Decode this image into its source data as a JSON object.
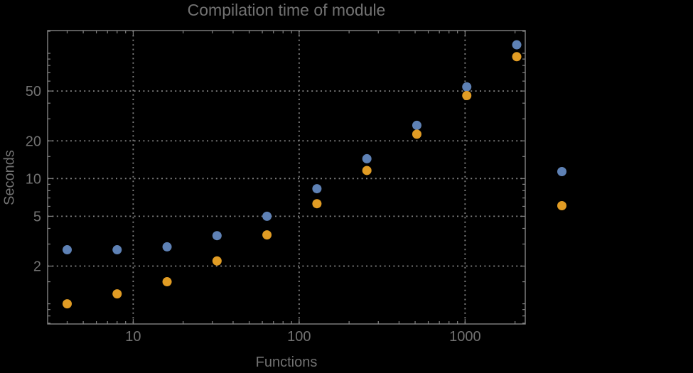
{
  "colors": {
    "background": "#000000",
    "text": "#727272",
    "frame": "#838383",
    "grid": "#848484",
    "series_blue": "#5E81B5",
    "series_orange": "#E19C24"
  },
  "chart_data": {
    "type": "scatter",
    "title": "Compilation time of module",
    "xlabel": "Functions",
    "ylabel": "Seconds",
    "x_scale": "log",
    "y_scale": "log",
    "xlim": [
      3.05,
      2305
    ],
    "ylim": [
      0.69,
      152
    ],
    "grid": "dotted, at labeled ticks only",
    "legend_position": "right-outside, markers only (no visible label text)",
    "x": [
      4,
      8,
      16,
      32,
      64,
      128,
      256,
      512,
      1024,
      2048
    ],
    "series": [
      {
        "name": "series-1-blue",
        "color": "#5E81B5",
        "values": [
          2.7,
          2.7,
          2.85,
          3.5,
          5.0,
          8.3,
          14.4,
          26.6,
          54,
          117
        ]
      },
      {
        "name": "series-2-orange",
        "color": "#E19C24",
        "values": [
          1.0,
          1.2,
          1.5,
          2.2,
          3.55,
          6.3,
          11.6,
          22.6,
          46,
          94
        ]
      }
    ],
    "x_ticks": {
      "labeled": [
        10,
        100,
        1000
      ],
      "labels": [
        "10",
        "100",
        "1000"
      ],
      "minor": [
        4,
        5,
        6,
        7,
        8,
        9,
        20,
        30,
        40,
        50,
        60,
        70,
        80,
        90,
        200,
        300,
        400,
        500,
        600,
        700,
        800,
        900,
        2000
      ]
    },
    "y_ticks": {
      "labeled": [
        2,
        5,
        10,
        20,
        50
      ],
      "labels": [
        "2",
        "5",
        "10",
        "20",
        "50"
      ],
      "minor": [
        0.7,
        0.8,
        0.9,
        1,
        1.5,
        3,
        4,
        6,
        7,
        8,
        9,
        15,
        30,
        40,
        60,
        70,
        80,
        90,
        100,
        150
      ]
    }
  }
}
